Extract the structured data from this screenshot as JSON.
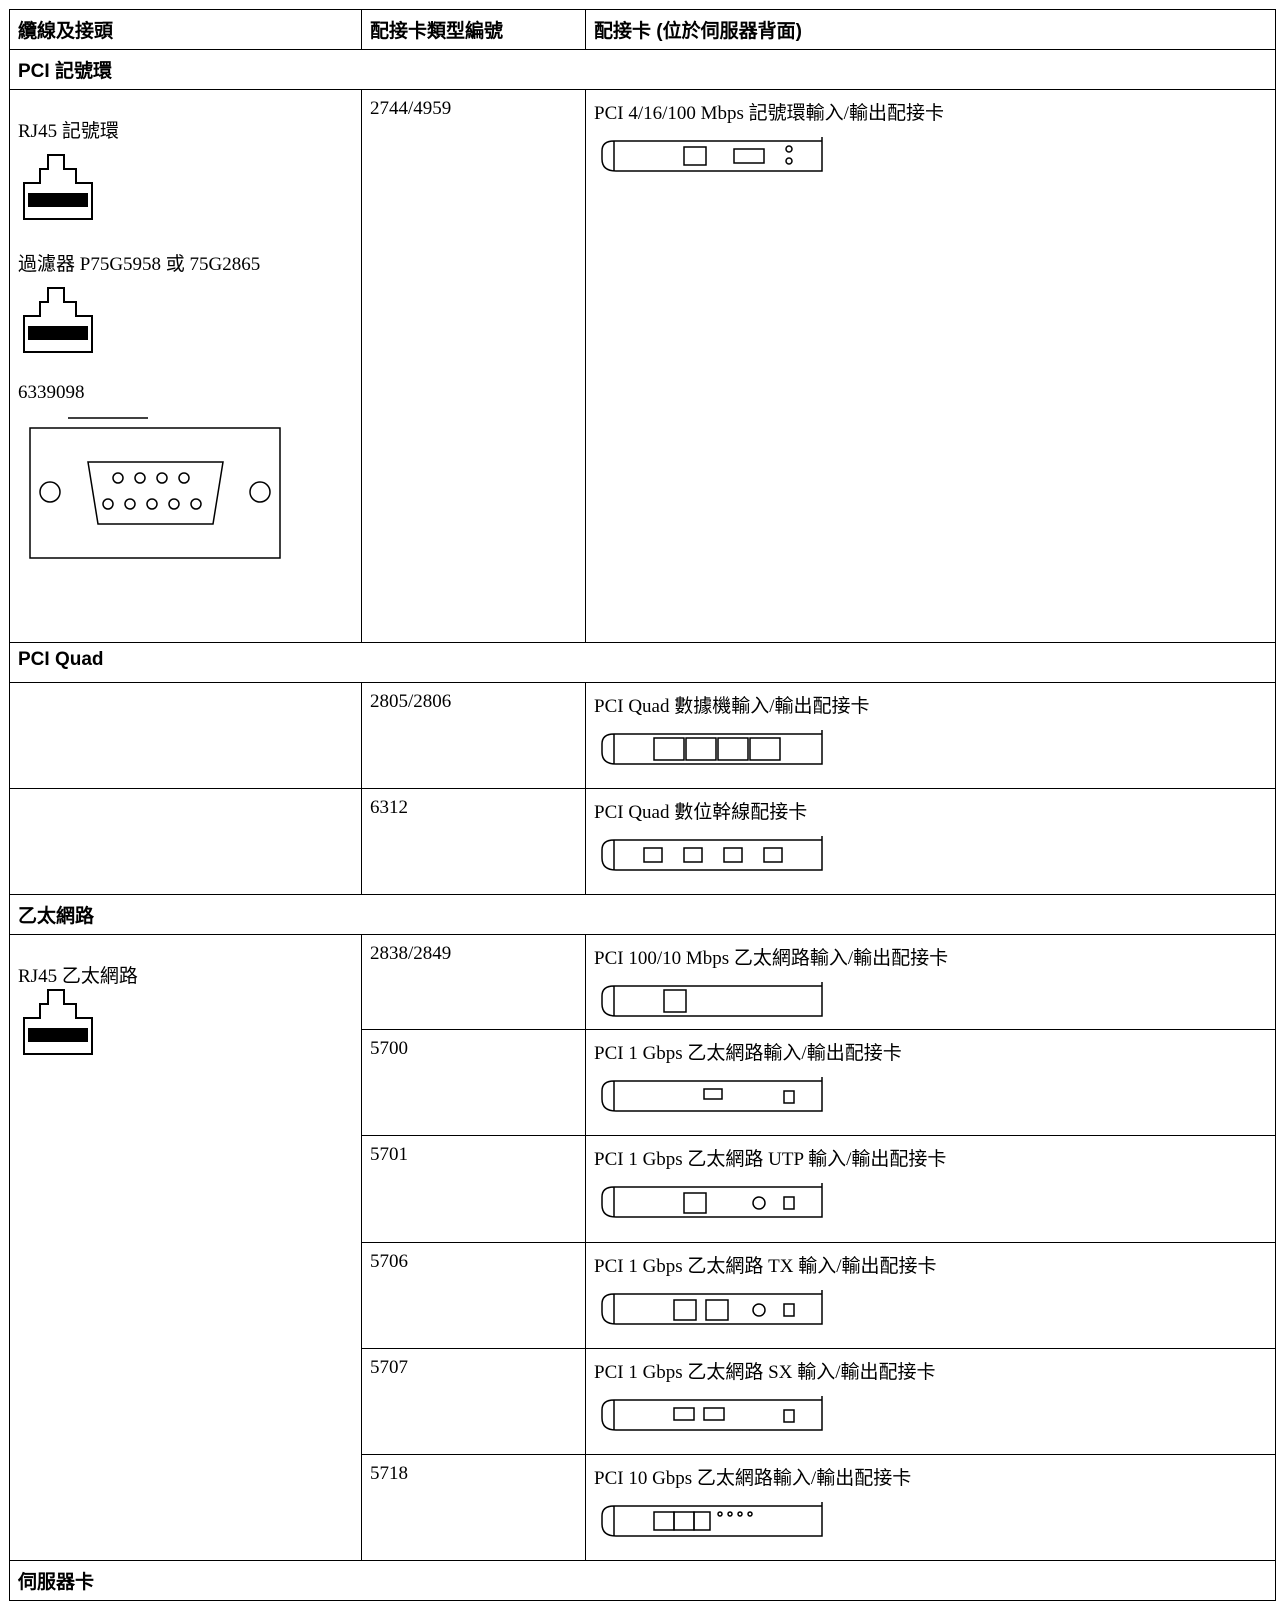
{
  "table": {
    "header": [
      "纜線及接頭",
      "配接卡類型編號",
      "配接卡 (位於伺服器背面)"
    ],
    "sections": [
      {
        "title": "PCI 記號環",
        "rows": [
          {
            "cables": [
              "RJ45 記號環",
              "過濾器 P75G5958 或 75G2865",
              "6339098"
            ],
            "type": "2744/4959",
            "adapter": "PCI 4/16/100 Mbps 記號環輸入/輸出配接卡"
          }
        ]
      },
      {
        "title": "PCI Quad",
        "rows": [
          {
            "type": "2805/2806",
            "adapter": "PCI Quad 數據機輸入/輸出配接卡"
          },
          {
            "type": "6312",
            "adapter": "PCI Quad 數位幹線配接卡"
          }
        ]
      },
      {
        "title": "乙太網路",
        "cable": "RJ45 乙太網路",
        "rows": [
          {
            "type": "2838/2849",
            "adapter": "PCI 100/10 Mbps 乙太網路輸入/輸出配接卡"
          },
          {
            "type": "5700",
            "adapter": "PCI 1 Gbps 乙太網路輸入/輸出配接卡"
          },
          {
            "type": "5701",
            "adapter": "PCI 1 Gbps 乙太網路 UTP 輸入/輸出配接卡"
          },
          {
            "type": "5706",
            "adapter": "PCI 1 Gbps 乙太網路 TX 輸入/輸出配接卡"
          },
          {
            "type": "5707",
            "adapter": "PCI 1 Gbps 乙太網路 SX 輸入/輸出配接卡"
          },
          {
            "type": "5718",
            "adapter": "PCI 10 Gbps 乙太網路輸入/輸出配接卡"
          }
        ]
      },
      {
        "title": "伺服器卡"
      }
    ]
  }
}
